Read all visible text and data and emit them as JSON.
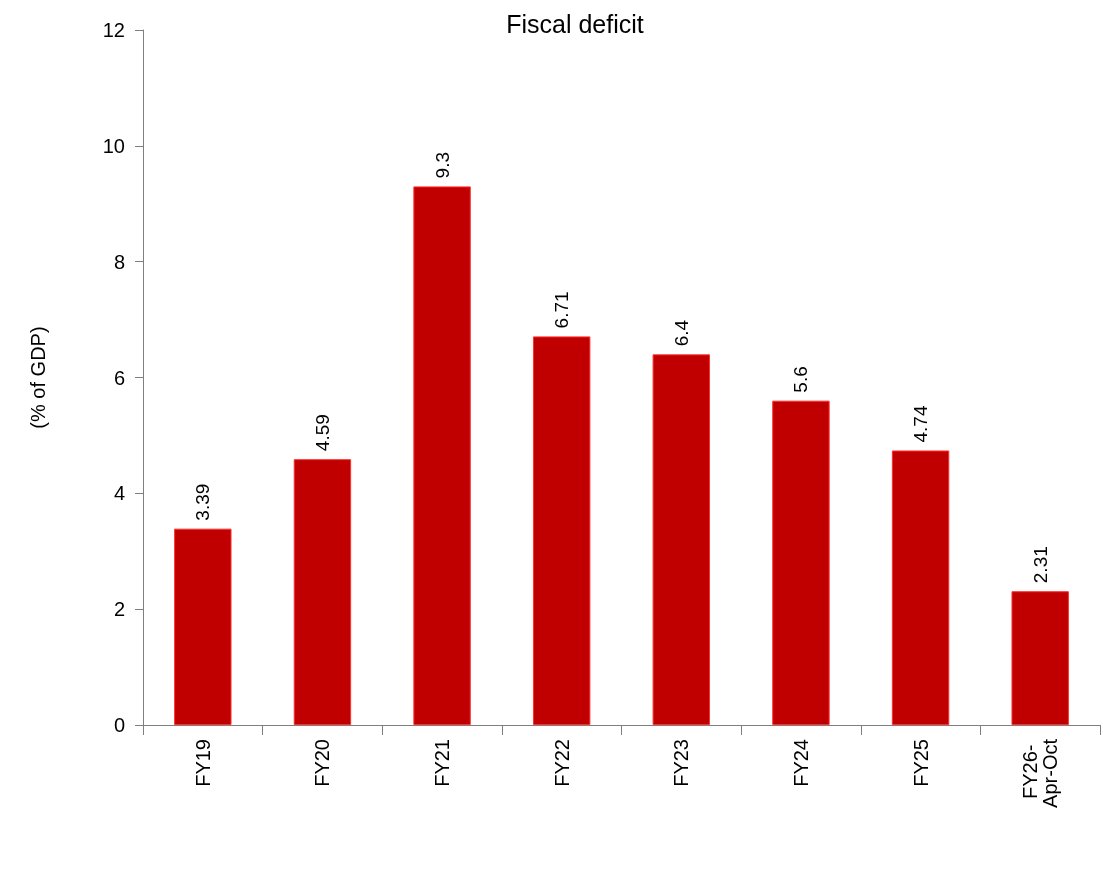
{
  "chart_data": {
    "type": "bar",
    "title": "Fiscal deficit",
    "ylabel": "(% of GDP)",
    "categories": [
      "FY19",
      "FY20",
      "FY21",
      "FY22",
      "FY23",
      "FY24",
      "FY25",
      "FY26- Apr-Oct"
    ],
    "values": [
      3.39,
      4.59,
      9.3,
      6.71,
      6.4,
      5.6,
      4.74,
      2.31
    ],
    "color": "#c00000",
    "ylim": [
      0,
      12
    ],
    "yticks": [
      0,
      2,
      4,
      6,
      8,
      10,
      12
    ],
    "grid": false,
    "data_labels": true
  }
}
